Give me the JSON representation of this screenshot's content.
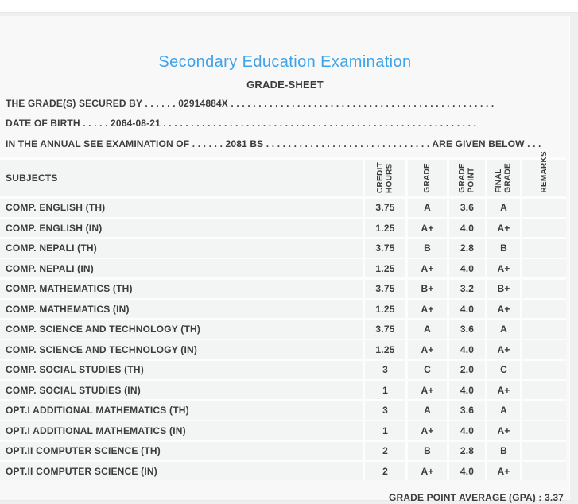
{
  "header": {
    "title": "Secondary Education Examination",
    "subtitle": "GRADE-SHEET",
    "accent_color": "#3fa3e9",
    "text_color": "#3c3c3c"
  },
  "info_lines": [
    "THE GRADE(S) SECURED BY . . . . . . 02914884X . . . . . . . . . . . . . . . . . . . . . . . . . . . . . . . . . . . . . . . . . . . . . . . .",
    "DATE OF BIRTH . . . . . 2064-08-21 . . . . . . . . . . . . . . . . . . . . . . . . . . . . . . . . . . . . . . . . . . . . . . . . . . . . . . . . .",
    "IN THE ANNUAL SEE EXAMINATION OF . . . . . . 2081 BS . . . . . . . . . . . . . . . . . . . . . . . . . . . . . . ARE GIVEN BELOW . . ."
  ],
  "candidate": {
    "symbol_number": "02914884X",
    "date_of_birth": "2064-08-21",
    "examination_year": "2081 BS"
  },
  "table": {
    "subjects_header": "SUBJECTS",
    "columns": [
      "CREDIT\nHOURS",
      "GRADE",
      "GRADE\nPOINT",
      "FINAL\nGRADE",
      "REMARKS"
    ],
    "rows": [
      {
        "subject": "COMP. ENGLISH (TH)",
        "credit": "3.75",
        "grade": "A",
        "point": "3.6",
        "final": "A",
        "remarks": ""
      },
      {
        "subject": "COMP. ENGLISH (IN)",
        "credit": "1.25",
        "grade": "A+",
        "point": "4.0",
        "final": "A+",
        "remarks": ""
      },
      {
        "subject": "COMP. NEPALI (TH)",
        "credit": "3.75",
        "grade": "B",
        "point": "2.8",
        "final": "B",
        "remarks": ""
      },
      {
        "subject": "COMP. NEPALI (IN)",
        "credit": "1.25",
        "grade": "A+",
        "point": "4.0",
        "final": "A+",
        "remarks": ""
      },
      {
        "subject": "COMP. MATHEMATICS (TH)",
        "credit": "3.75",
        "grade": "B+",
        "point": "3.2",
        "final": "B+",
        "remarks": ""
      },
      {
        "subject": "COMP. MATHEMATICS (IN)",
        "credit": "1.25",
        "grade": "A+",
        "point": "4.0",
        "final": "A+",
        "remarks": ""
      },
      {
        "subject": "COMP. SCIENCE AND TECHNOLOGY (TH)",
        "credit": "3.75",
        "grade": "A",
        "point": "3.6",
        "final": "A",
        "remarks": ""
      },
      {
        "subject": "COMP. SCIENCE AND TECHNOLOGY (IN)",
        "credit": "1.25",
        "grade": "A+",
        "point": "4.0",
        "final": "A+",
        "remarks": ""
      },
      {
        "subject": "COMP. SOCIAL STUDIES (TH)",
        "credit": "3",
        "grade": "C",
        "point": "2.0",
        "final": "C",
        "remarks": ""
      },
      {
        "subject": "COMP. SOCIAL STUDIES (IN)",
        "credit": "1",
        "grade": "A+",
        "point": "4.0",
        "final": "A+",
        "remarks": ""
      },
      {
        "subject": "OPT.I ADDITIONAL MATHEMATICS (TH)",
        "credit": "3",
        "grade": "A",
        "point": "3.6",
        "final": "A",
        "remarks": ""
      },
      {
        "subject": "OPT.I ADDITIONAL MATHEMATICS (IN)",
        "credit": "1",
        "grade": "A+",
        "point": "4.0",
        "final": "A+",
        "remarks": ""
      },
      {
        "subject": "OPT.II COMPUTER SCIENCE (TH)",
        "credit": "2",
        "grade": "B",
        "point": "2.8",
        "final": "B",
        "remarks": ""
      },
      {
        "subject": "OPT.II COMPUTER SCIENCE (IN)",
        "credit": "2",
        "grade": "A+",
        "point": "4.0",
        "final": "A+",
        "remarks": ""
      }
    ]
  },
  "footer": {
    "gpa_line": "GRADE POINT AVERAGE (GPA) : 3.37",
    "gpa_value": "3.37"
  }
}
